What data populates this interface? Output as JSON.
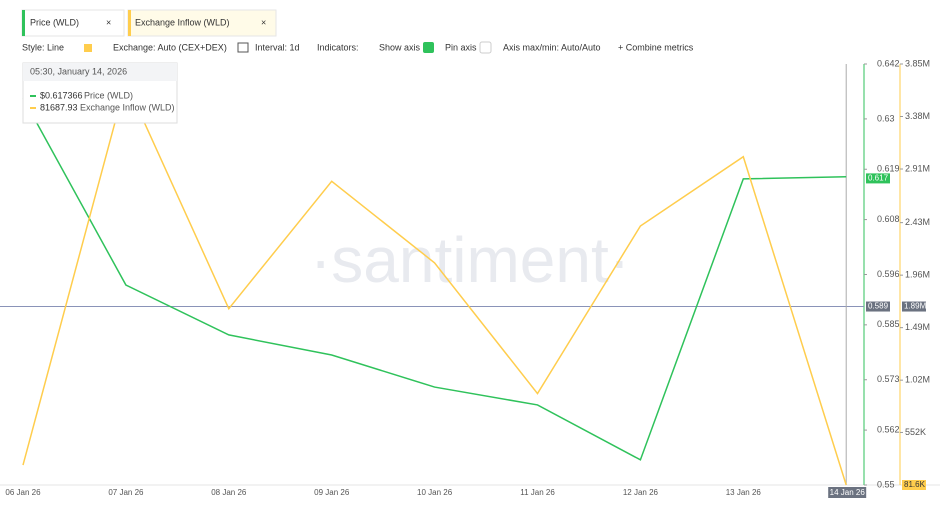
{
  "tabs_close": "×",
  "toolbar": {
    "style": "Style: Line",
    "exchange": "Exchange: Auto (CEX+DEX)",
    "interval": "Interval: 1d",
    "indicators": "Indicators:",
    "show_axis": "Show axis",
    "pin_axis": "Pin axis",
    "axis_maxmin": "Axis max/min: Auto/Auto",
    "combine": "+ Combine metrics"
  },
  "watermark": "·santiment·",
  "tooltip": {
    "time": "05:30, January 14, 2026",
    "rows": [
      "$0.617366",
      "81687.93"
    ]
  },
  "chart_data": {
    "type": "line",
    "categories": [
      "06 Jan 26",
      "07 Jan 26",
      "08 Jan 26",
      "09 Jan 26",
      "10 Jan 26",
      "11 Jan 26",
      "12 Jan 26",
      "13 Jan 26",
      "14 Jan 26"
    ],
    "series": [
      {
        "name": "Price (WLD)",
        "color": "#2fc25b",
        "values": [
          0.6346,
          0.5937,
          0.5828,
          0.5784,
          0.5714,
          0.5675,
          0.5555,
          0.6169,
          0.617366
        ]
      },
      {
        "name": "Exchange Inflow (WLD)",
        "color": "#ffcd4d",
        "axis": "y2",
        "values": [
          260000,
          3690000,
          1660000,
          2800000,
          2070000,
          900000,
          2400000,
          3020000,
          81687.93
        ]
      }
    ],
    "ylim": [
      0.55,
      0.642
    ],
    "yticks": [
      0.642,
      0.63,
      0.619,
      0.608,
      0.596,
      0.585,
      0.573,
      0.562,
      0.55
    ],
    "y2lim": [
      81600,
      3850000
    ],
    "y2ticks": [
      {
        "value": 3850000,
        "label": "3.85M"
      },
      {
        "value": 3380000,
        "label": "3.38M"
      },
      {
        "value": 2910000,
        "label": "2.91M"
      },
      {
        "value": 2430000,
        "label": "2.43M"
      },
      {
        "value": 1960000,
        "label": "1.96M"
      },
      {
        "value": 1490000,
        "label": "1.49M"
      },
      {
        "value": 1020000,
        "label": "1.02M"
      },
      {
        "value": 552000,
        "label": "552K"
      }
    ],
    "last_price": 0.617,
    "crosshair": {
      "value": 0.589,
      "y2_label": "1.89M"
    },
    "last_inflow": {
      "value": 81600,
      "label": "81.6K"
    }
  }
}
